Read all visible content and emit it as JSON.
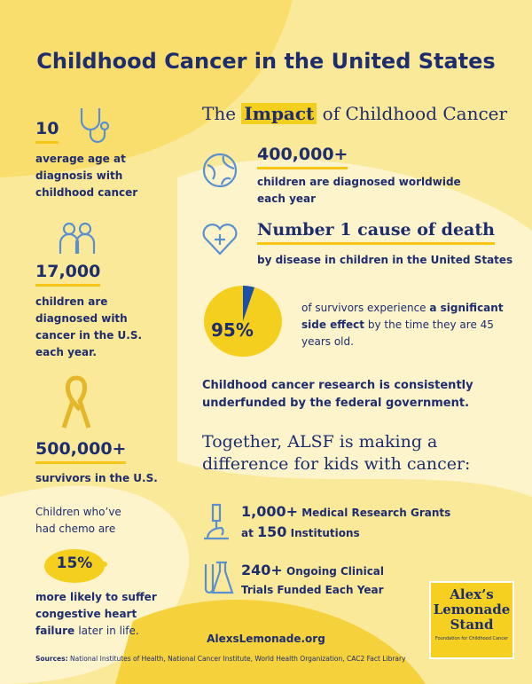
{
  "title": "Childhood Cancer in the United States",
  "left": {
    "age": {
      "stat": "10",
      "text": "average age at diagnosis with childhood cancer"
    },
    "diagnosed": {
      "stat": "17,000",
      "text": "children are diagnosed with cancer in the U.S. each year."
    },
    "survivors": {
      "stat": "500,000+",
      "text": "survivors in the U.S."
    },
    "chemo": {
      "intro": "Children who’ve had chemo are",
      "stat": "15%",
      "text_bold": "more likely to suffer congestive heart failure",
      "text_rest": "later in life."
    }
  },
  "impact": {
    "heading": {
      "before": "The",
      "highlight": "Impact",
      "after": "of Childhood Cancer"
    },
    "worldwide": {
      "stat": "400,000+",
      "text": "children are diagnosed worldwide each year"
    },
    "cause": {
      "stat": "Number 1 cause of death",
      "text": "by disease in children in the United States"
    },
    "side_effect": {
      "stat": "95%",
      "text_before": "of survivors experience",
      "text_bold": "a significant side effect",
      "text_after": "by the time they are 45 years old."
    },
    "statement": "Childhood cancer research is consistently underfunded by the federal government.",
    "together": "Together, ALSF is making a difference for kids with cancer:",
    "grants": {
      "stat": "1,000+",
      "label": "Medical Research Grants",
      "at": "at",
      "stat2": "150",
      "label2": "Institutions"
    },
    "trials": {
      "stat": "240+",
      "label": "Ongoing Clinical Trials Funded Each Year"
    }
  },
  "logo": {
    "line1": "Alex’s",
    "line2": "Lemonade",
    "line3": "Stand",
    "tagline": "Foundation for Childhood Cancer"
  },
  "footer": {
    "url": "AlexsLemonade.org",
    "sources_label": "Sources:",
    "sources": "National Institutes of Health, National Cancer Institute, World Health Organization, CAC2 Fact Library"
  }
}
